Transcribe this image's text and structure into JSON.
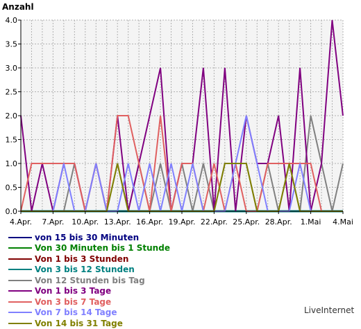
{
  "chart_data": {
    "type": "line",
    "title": "",
    "ylabel": "Anzahl",
    "xlabel": "",
    "ylim": [
      0,
      4
    ],
    "yticks": [
      "0.0",
      "0.5",
      "1.0",
      "1.5",
      "2.0",
      "2.5",
      "3.0",
      "3.5",
      "4.0"
    ],
    "x_ticks": [
      {
        "label": "4.Apr.",
        "index": 0
      },
      {
        "label": "7.Apr.",
        "index": 3
      },
      {
        "label": "10.Apr.",
        "index": 6
      },
      {
        "label": "13.Apr.",
        "index": 9
      },
      {
        "label": "16.Apr.",
        "index": 12
      },
      {
        "label": "19.Apr.",
        "index": 15
      },
      {
        "label": "22.Apr.",
        "index": 18
      },
      {
        "label": "25.Apr.",
        "index": 21
      },
      {
        "label": "28.Apr.",
        "index": 24
      },
      {
        "label": "1.Mai",
        "index": 27
      },
      {
        "label": "4.Mai",
        "index": 30
      }
    ],
    "grid": true,
    "legend_placement": "bottom-left",
    "series": [
      {
        "name": "von 15 bis 30 Minuten",
        "color": "#000080",
        "values": [
          0,
          0,
          0,
          0,
          0,
          0,
          0,
          0,
          0,
          0,
          0,
          0,
          0,
          0,
          0,
          0,
          0,
          0,
          0,
          0,
          0,
          0,
          0,
          0,
          0,
          0,
          0,
          0,
          0,
          0,
          0
        ]
      },
      {
        "name": "Von 30 Minuten bis 1 Stunde",
        "color": "#008000",
        "values": [
          0,
          0,
          0,
          0,
          0,
          0,
          0,
          0,
          0,
          0,
          0,
          0,
          0,
          0,
          0,
          0,
          0,
          0,
          0,
          0,
          0,
          0,
          0,
          0,
          0,
          0,
          0,
          0,
          0,
          0,
          0
        ]
      },
      {
        "name": "Von 1 bis 3 Stunden",
        "color": "#800000",
        "values": [
          0,
          0,
          0,
          0,
          0,
          0,
          0,
          0,
          0,
          0,
          0,
          0,
          0,
          0,
          0,
          0,
          0,
          0,
          0,
          0,
          0,
          0,
          0,
          0,
          0,
          0,
          0,
          0,
          0,
          0,
          0
        ]
      },
      {
        "name": "Von 3 bis 12 Stunden",
        "color": "#008080",
        "values": [
          0,
          0,
          0,
          0,
          0,
          0,
          0,
          0,
          0,
          0,
          0,
          0,
          0,
          0,
          0,
          0,
          0,
          0,
          0,
          0,
          0,
          0,
          0,
          0,
          0,
          0,
          0,
          0,
          0,
          0,
          0
        ]
      },
      {
        "name": "Von 12 Stunden bis Tag",
        "color": "#808080",
        "values": [
          0,
          0,
          0,
          0,
          0,
          1,
          0,
          1,
          0,
          1,
          0,
          1,
          0,
          1,
          0,
          1,
          0,
          1,
          0,
          1,
          1,
          1,
          0,
          1,
          0,
          1,
          0,
          2,
          1,
          0,
          1
        ]
      },
      {
        "name": "Von 1 bis 3 Tage",
        "color": "#800080",
        "values": [
          2,
          0,
          1,
          0,
          1,
          1,
          0,
          1,
          0,
          2,
          0,
          1,
          2,
          3,
          0,
          1,
          1,
          3,
          0,
          3,
          0,
          2,
          1,
          1,
          2,
          0,
          3,
          0,
          1,
          4,
          2
        ]
      },
      {
        "name": "Von 3 bis 7 Tage",
        "color": "#e06060",
        "values": [
          0,
          1,
          1,
          1,
          1,
          1,
          0,
          1,
          0,
          2,
          2,
          1,
          0,
          2,
          0,
          1,
          1,
          0,
          1,
          0,
          1,
          0,
          0,
          1,
          1,
          1,
          1,
          1,
          0,
          0,
          0
        ]
      },
      {
        "name": "Von 7 bis 14 Tage",
        "color": "#8080ff",
        "values": [
          0,
          0,
          0,
          0,
          1,
          0,
          0,
          1,
          0,
          0,
          1,
          0,
          1,
          0,
          1,
          0,
          1,
          0,
          0,
          0,
          1,
          2,
          1,
          0,
          0,
          0,
          1,
          0,
          0,
          0,
          0
        ]
      },
      {
        "name": "Von 14 bis 31 Tage",
        "color": "#808000",
        "values": [
          0,
          0,
          0,
          0,
          0,
          0,
          0,
          0,
          0,
          1,
          0,
          0,
          0,
          0,
          0,
          0,
          0,
          0,
          0,
          1,
          1,
          1,
          0,
          0,
          0,
          1,
          0,
          0,
          0,
          0,
          0
        ]
      }
    ]
  },
  "watermark": "LiveInternet"
}
